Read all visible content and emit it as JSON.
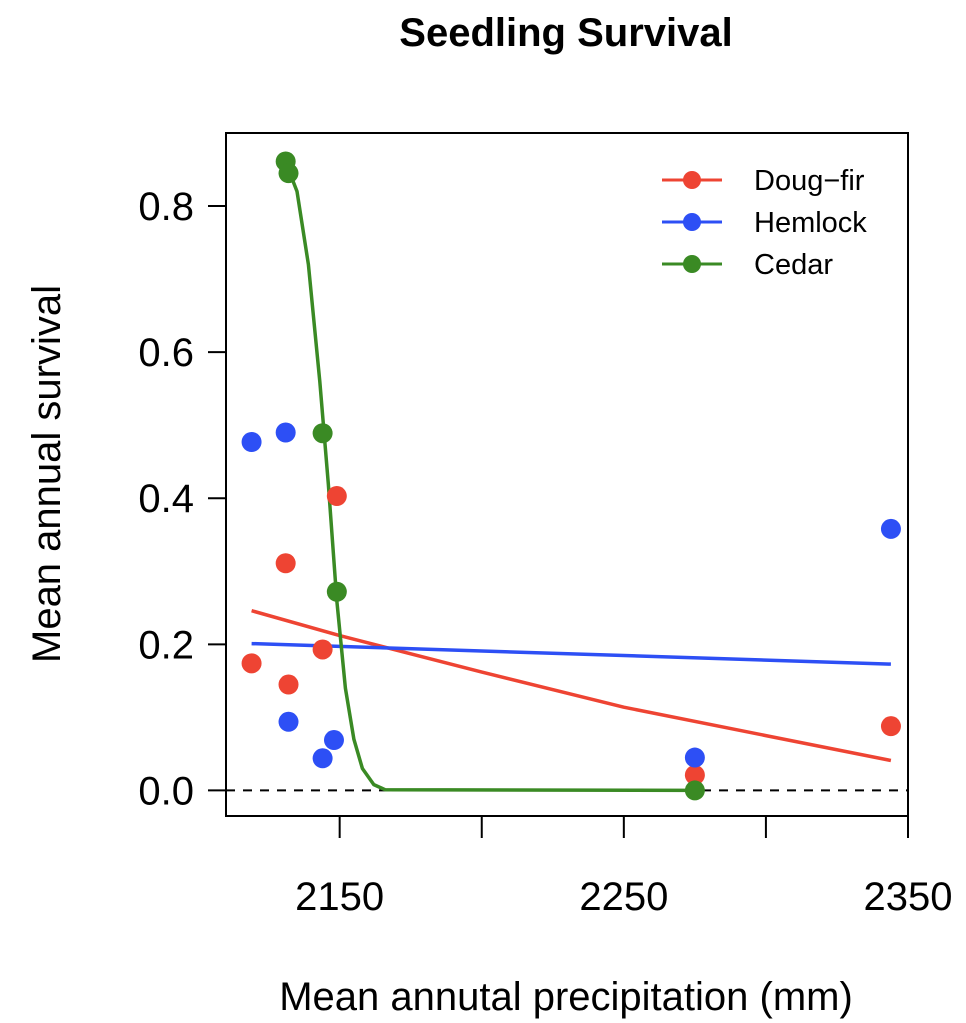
{
  "chart_data": {
    "type": "scatter",
    "title": "Seedling Survival",
    "xlabel": "Mean annutal precipitation (mm)",
    "ylabel": "Mean annual survival",
    "xlim": [
      2110,
      2350
    ],
    "ylim": [
      -0.035,
      0.9
    ],
    "x_ticks": [
      2150,
      2200,
      2250,
      2300,
      2350
    ],
    "x_tick_labels": [
      "2150",
      "",
      "2250",
      "",
      "2350"
    ],
    "y_ticks": [
      0.0,
      0.2,
      0.4,
      0.6,
      0.8
    ],
    "y_tick_labels": [
      "0.0",
      "0.2",
      "0.4",
      "0.6",
      "0.8"
    ],
    "reference_line": {
      "y": 0,
      "style": "dashed"
    },
    "legend_position": "top-right",
    "series": [
      {
        "name": "Doug−fir",
        "color": "#ee4433",
        "points": [
          [
            2119,
            0.174
          ],
          [
            2131,
            0.311
          ],
          [
            2132,
            0.145
          ],
          [
            2144,
            0.193
          ],
          [
            2149,
            0.403
          ],
          [
            2275,
            0.021
          ],
          [
            2344,
            0.088
          ]
        ],
        "fit": [
          [
            2119,
            0.246
          ],
          [
            2150,
            0.212
          ],
          [
            2200,
            0.162
          ],
          [
            2250,
            0.114
          ],
          [
            2300,
            0.075
          ],
          [
            2344,
            0.041
          ]
        ]
      },
      {
        "name": "Hemlock",
        "color": "#2d4ff5",
        "points": [
          [
            2119,
            0.477
          ],
          [
            2131,
            0.49
          ],
          [
            2132,
            0.094
          ],
          [
            2144,
            0.044
          ],
          [
            2148,
            0.069
          ],
          [
            2275,
            0.045
          ],
          [
            2344,
            0.358
          ]
        ],
        "fit": [
          [
            2119,
            0.201
          ],
          [
            2344,
            0.173
          ]
        ]
      },
      {
        "name": "Cedar",
        "color": "#3a8a24",
        "points": [
          [
            2131,
            0.861
          ],
          [
            2132,
            0.845
          ],
          [
            2144,
            0.489
          ],
          [
            2149,
            0.272
          ],
          [
            2275,
            0.0
          ]
        ],
        "fit": [
          [
            2131,
            0.86
          ],
          [
            2135,
            0.82
          ],
          [
            2139,
            0.72
          ],
          [
            2143,
            0.56
          ],
          [
            2146,
            0.42
          ],
          [
            2149,
            0.26
          ],
          [
            2152,
            0.14
          ],
          [
            2155,
            0.07
          ],
          [
            2158,
            0.03
          ],
          [
            2162,
            0.008
          ],
          [
            2166,
            0.001
          ],
          [
            2275,
            0.0
          ]
        ]
      }
    ]
  }
}
